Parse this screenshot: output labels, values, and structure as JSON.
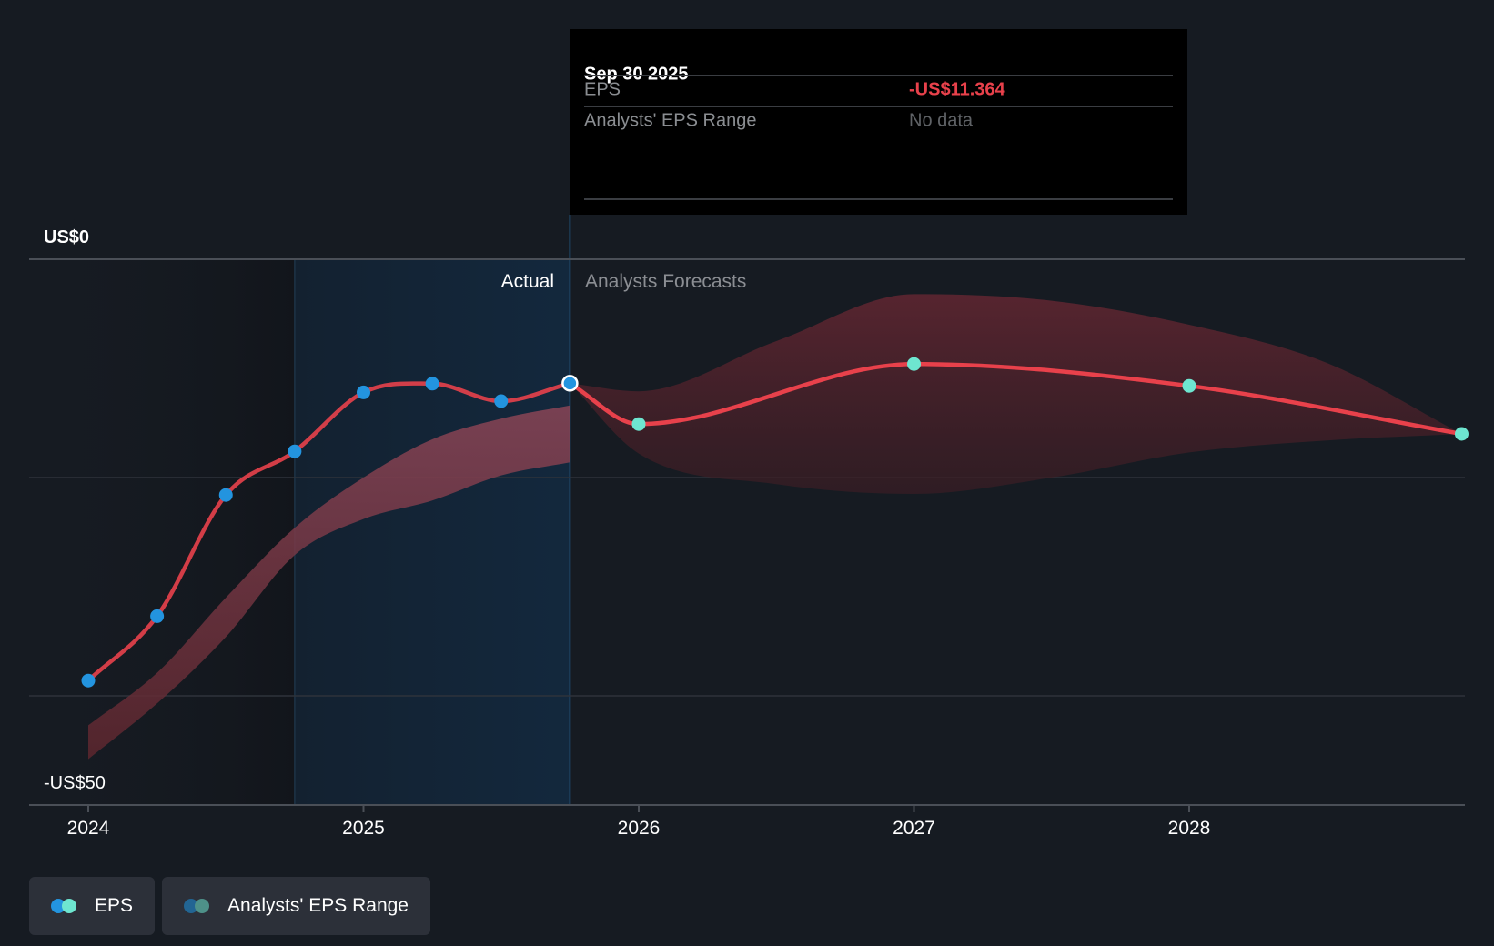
{
  "chart_data": {
    "type": "line",
    "title": "",
    "xlabel": "",
    "ylabel": "",
    "y_tick_labels": [
      {
        "value": 0,
        "label": "US$0"
      },
      {
        "value": -50,
        "label": "-US$50"
      }
    ],
    "y_gridlines": [
      0,
      -20,
      -40
    ],
    "ylim": [
      -50,
      0
    ],
    "xlim": [
      2024.0,
      2029.0
    ],
    "x_ticks": [
      {
        "value": 2024,
        "label": "2024"
      },
      {
        "value": 2025,
        "label": "2025"
      },
      {
        "value": 2026,
        "label": "2026"
      },
      {
        "value": 2027,
        "label": "2027"
      },
      {
        "value": 2028,
        "label": "2028"
      }
    ],
    "regions": {
      "past_start": 2024.75,
      "actual_end": 2025.75,
      "actual_label": "Actual",
      "forecast_label": "Analysts Forecasts"
    },
    "series": [
      {
        "name": "EPS",
        "kind": "actual",
        "color": "#e8414b",
        "marker_color": "#2394df",
        "points": [
          {
            "x": 2024.0,
            "y": -38.6
          },
          {
            "x": 2024.25,
            "y": -32.7
          },
          {
            "x": 2024.5,
            "y": -21.6
          },
          {
            "x": 2024.75,
            "y": -17.6
          },
          {
            "x": 2025.0,
            "y": -12.2
          },
          {
            "x": 2025.25,
            "y": -11.4
          },
          {
            "x": 2025.5,
            "y": -13.0
          },
          {
            "x": 2025.75,
            "y": -11.364
          }
        ]
      },
      {
        "name": "EPS",
        "kind": "forecast",
        "color": "#e8414b",
        "marker_color": "#6ee6d0",
        "points": [
          {
            "x": 2025.75,
            "y": -11.364
          },
          {
            "x": 2026.0,
            "y": -15.1
          },
          {
            "x": 2027.0,
            "y": -9.6
          },
          {
            "x": 2028.0,
            "y": -11.6
          },
          {
            "x": 2028.99,
            "y": -16.0
          }
        ]
      }
    ],
    "ranges": [
      {
        "name": "Analysts' EPS Range (past)",
        "x": [
          2024.0,
          2024.25,
          2024.5,
          2024.75,
          2025.0,
          2025.25,
          2025.5,
          2025.75
        ],
        "high": [
          -42.7,
          -37.9,
          -31.0,
          -24.6,
          -20.0,
          -16.5,
          -14.6,
          -13.4
        ],
        "low": [
          -45.8,
          -40.7,
          -34.6,
          -27.1,
          -23.8,
          -22.1,
          -19.8,
          -18.6
        ]
      },
      {
        "name": "Analysts' EPS Range (forecast)",
        "x": [
          2025.75,
          2026.0,
          2026.5,
          2027.0,
          2027.5,
          2028.0,
          2028.5,
          2028.99
        ],
        "high": [
          -11.364,
          -12.1,
          -7.5,
          -3.2,
          -3.8,
          -6.0,
          -9.5,
          -16.0
        ],
        "low": [
          -11.364,
          -17.8,
          -20.6,
          -21.5,
          -20.0,
          -17.7,
          -16.6,
          -16.0
        ]
      }
    ],
    "highlight": {
      "x": 2025.75,
      "y": -11.364
    }
  },
  "tooltip": {
    "date": "Sep 30 2025",
    "rows": [
      {
        "label": "EPS",
        "value": "-US$11.364"
      },
      {
        "label": "Analysts' EPS Range",
        "value": "No data"
      }
    ]
  },
  "legend": {
    "items": [
      {
        "label": "EPS",
        "colors": [
          "#2394df",
          "#6ee6d0"
        ]
      },
      {
        "label": "Analysts' EPS Range",
        "colors": [
          "#226593",
          "#4e9189"
        ]
      }
    ]
  }
}
